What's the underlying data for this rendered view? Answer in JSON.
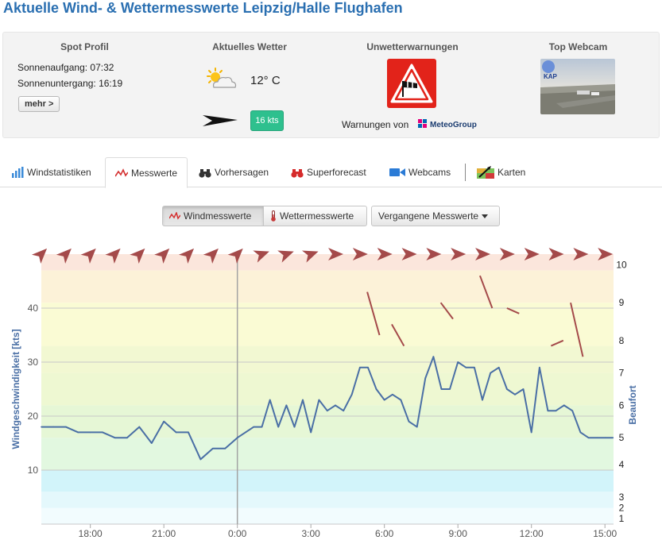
{
  "page": {
    "title": "Aktuelle Wind- & Wettermesswerte Leipzig/Halle Flughafen"
  },
  "spot_profile": {
    "heading": "Spot Profil",
    "sunrise": "Sonnenaufgang: 07:32",
    "sunset": "Sonnenuntergang: 16:19",
    "more_label": "mehr >"
  },
  "current_weather": {
    "heading": "Aktuelles Wetter",
    "temperature": "12° C",
    "wind_speed": "16 kts",
    "badge_color": "#2ec08e"
  },
  "warnings": {
    "heading": "Unwetterwarnungen",
    "provider_prefix": "Warnungen von",
    "provider_name": "MeteoGroup",
    "icon": "windsock-warning-icon"
  },
  "webcam": {
    "heading": "Top Webcam"
  },
  "tabs": [
    {
      "label": "Windstatistiken",
      "icon": "bar-chart-icon"
    },
    {
      "label": "Messwerte",
      "icon": "line-chart-icon",
      "active": true
    },
    {
      "label": "Vorhersagen",
      "icon": "binoculars-icon"
    },
    {
      "label": "Superforecast",
      "icon": "binoculars-red-icon"
    },
    {
      "label": "Webcams",
      "icon": "video-camera-icon"
    },
    {
      "label": "Karten",
      "icon": "map-icon"
    }
  ],
  "chart_toolbar": {
    "wind_label": "Windmesswerte",
    "weather_label": "Wettermesswerte",
    "past_label": "Vergangene Messwerte"
  },
  "chart_data": {
    "type": "line",
    "ylabel": "Windgeschwindigkeit [kts]",
    "y2label": "Beaufort",
    "ylim": [
      0,
      50
    ],
    "xlim": [
      -8.0,
      15.35
    ],
    "y_ticks": [
      10,
      20,
      30,
      40
    ],
    "x_ticks": [
      {
        "x": -6,
        "label": "18:00"
      },
      {
        "x": -3,
        "label": "21:00"
      },
      {
        "x": 0,
        "label": "0:00"
      },
      {
        "x": 3,
        "label": "3:00"
      },
      {
        "x": 6,
        "label": "6:00"
      },
      {
        "x": 9,
        "label": "9:00"
      },
      {
        "x": 12,
        "label": "12:00"
      },
      {
        "x": 15,
        "label": "15:00"
      }
    ],
    "beaufort_ticks": [
      {
        "kts": 1,
        "label": "1"
      },
      {
        "kts": 3,
        "label": "2"
      },
      {
        "kts": 5,
        "label": "3"
      },
      {
        "kts": 11,
        "label": "4"
      },
      {
        "kts": 16,
        "label": "5"
      },
      {
        "kts": 22,
        "label": "6"
      },
      {
        "kts": 28,
        "label": "7"
      },
      {
        "kts": 34,
        "label": "8"
      },
      {
        "kts": 41,
        "label": "9"
      },
      {
        "kts": 48,
        "label": "10"
      }
    ],
    "beaufort_bands": [
      {
        "from": 0,
        "to": 3,
        "color": "#f2fcfe"
      },
      {
        "from": 3,
        "to": 6,
        "color": "#e4f8fc"
      },
      {
        "from": 6,
        "to": 10,
        "color": "#d2f4fa"
      },
      {
        "from": 10,
        "to": 16,
        "color": "#e2f8e0"
      },
      {
        "from": 16,
        "to": 22,
        "color": "#e6f7d6"
      },
      {
        "from": 22,
        "to": 28,
        "color": "#eef8d2"
      },
      {
        "from": 28,
        "to": 33,
        "color": "#f2f8d2"
      },
      {
        "from": 33,
        "to": 41,
        "color": "#fafbd4"
      },
      {
        "from": 41,
        "to": 47,
        "color": "#fcf2d8"
      },
      {
        "from": 47,
        "to": 50,
        "color": "#fbe6dc"
      }
    ],
    "now_marker_x": 0,
    "series": [
      {
        "color": "#4a6fa5",
        "x": [
          -8.0,
          -7.5,
          -7.0,
          -6.5,
          -6.0,
          -5.5,
          -5.0,
          -4.5,
          -4.0,
          -3.5,
          -3.0,
          -2.5,
          -2.0,
          -1.5,
          -1.0,
          -0.5,
          0.0,
          0.33,
          0.67,
          1.0,
          1.33,
          1.67,
          2.0,
          2.33,
          2.67,
          3.0,
          3.33,
          3.67,
          4.0,
          4.33,
          4.67,
          5.0,
          5.33,
          5.67,
          6.0,
          6.33,
          6.67,
          7.0,
          7.33,
          7.67,
          8.0,
          8.33,
          8.67,
          9.0,
          9.33,
          9.67,
          10.0,
          10.33,
          10.67,
          11.0,
          11.33,
          11.67,
          12.0,
          12.33,
          12.67,
          13.0,
          13.33,
          13.67,
          14.0,
          14.33,
          14.67,
          15.0,
          15.33
        ],
        "values": [
          18,
          18,
          18,
          17,
          17,
          17,
          16,
          16,
          18,
          15,
          19,
          17,
          17,
          12,
          14,
          14,
          16,
          17,
          18,
          18,
          23,
          18,
          22,
          18,
          23,
          17,
          23,
          21,
          22,
          21,
          24,
          29,
          29,
          25,
          23,
          24,
          23,
          19,
          18,
          27,
          31,
          25,
          25,
          30,
          29,
          29,
          23,
          28,
          29,
          25,
          24,
          25,
          17,
          29,
          21,
          21,
          22,
          21,
          17,
          16,
          16,
          16,
          16
        ]
      }
    ],
    "gusts": [
      {
        "x": 5.3,
        "y1": 43,
        "y2": 35
      },
      {
        "x": 6.3,
        "y1": 37,
        "y2": 33
      },
      {
        "x": 8.3,
        "y1": 41,
        "y2": 38
      },
      {
        "x": 9.9,
        "y1": 46,
        "y2": 40
      },
      {
        "x": 11.0,
        "y1": 40,
        "y2": 39
      },
      {
        "x": 12.8,
        "y1": 33,
        "y2": 34
      },
      {
        "x": 13.6,
        "y1": 41,
        "y2": 31
      }
    ],
    "direction_arrows": {
      "color": "#a44a4a",
      "hours": [
        -8,
        -7,
        -6,
        -5,
        -4,
        -3,
        -2,
        -1,
        0,
        1,
        2,
        3,
        4,
        5,
        6,
        7,
        8,
        9,
        10,
        11,
        12,
        13,
        14,
        15
      ],
      "direction_deg": [
        225,
        225,
        225,
        225,
        225,
        225,
        225,
        225,
        225,
        250,
        250,
        250,
        270,
        270,
        270,
        270,
        270,
        270,
        270,
        270,
        270,
        270,
        270,
        270
      ]
    }
  }
}
